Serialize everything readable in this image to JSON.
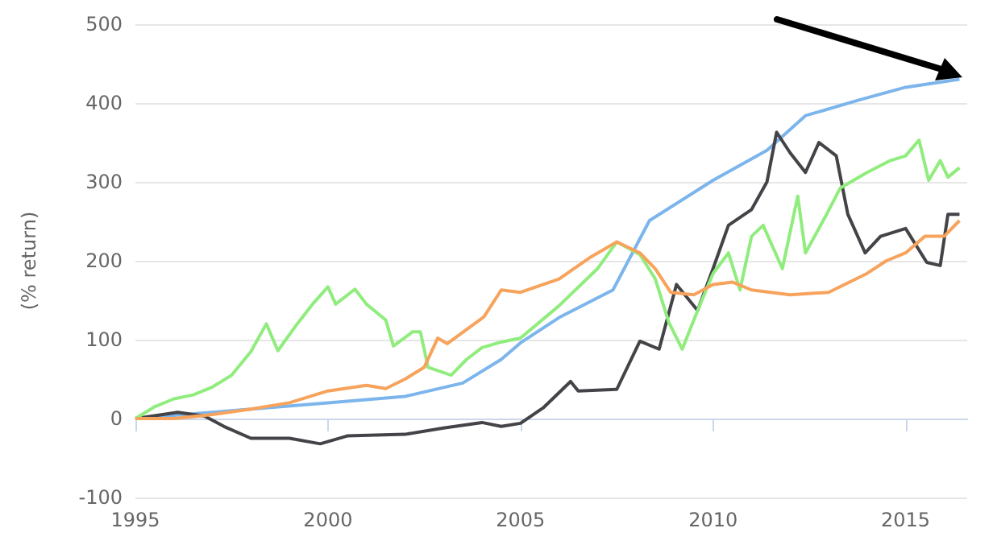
{
  "chart_data": {
    "type": "line",
    "ylabel": "(% return)",
    "xlim": [
      1995,
      2016.6
    ],
    "xticks": [
      1995,
      2000,
      2005,
      2010,
      2015
    ],
    "ylim": [
      -100,
      500
    ],
    "yticks": [
      -100,
      0,
      100,
      200,
      300,
      400,
      500
    ],
    "grid": "y",
    "marker": "none",
    "line_style": "solid",
    "series": [
      {
        "color": "#7cb5ec",
        "x": [
          1995,
          1997,
          2000,
          2002,
          2003.5,
          2004.5,
          2005,
          2006,
          2007.4,
          2008.35,
          2010,
          2011.4,
          2012.4,
          2013.8,
          2015,
          2016.4
        ],
        "values": [
          0,
          8,
          20,
          28,
          45,
          75,
          96,
          128,
          163,
          251,
          302,
          340,
          384,
          404,
          420,
          430
        ]
      },
      {
        "color": "#434348",
        "x": [
          1995,
          1996.1,
          1996.8,
          1997.3,
          1998,
          1999,
          1999.8,
          2000.5,
          2002,
          2003,
          2004,
          2004.5,
          2005,
          2005.6,
          2006.3,
          2006.5,
          2007.5,
          2008.1,
          2008.6,
          2009.05,
          2009.6,
          2010,
          2010.4,
          2011,
          2011.4,
          2011.65,
          2012,
          2012.4,
          2012.75,
          2013.2,
          2013.5,
          2013.95,
          2014.35,
          2015,
          2015.55,
          2015.9,
          2016.1,
          2016.4
        ],
        "values": [
          0,
          8,
          3,
          -10,
          -25,
          -25,
          -32,
          -22,
          -20,
          -12,
          -5,
          -10,
          -6,
          14,
          47,
          35,
          37,
          98,
          88,
          170,
          137,
          190,
          245,
          265,
          300,
          363,
          337,
          312,
          350,
          333,
          259,
          210,
          231,
          241,
          198,
          194,
          259,
          259
        ]
      },
      {
        "color": "#90ed7d",
        "x": [
          1995,
          1995.5,
          1996,
          1996.5,
          1997,
          1997.5,
          1998,
          1998.4,
          1998.7,
          1999.2,
          1999.6,
          2000,
          2000.2,
          2000.7,
          2001,
          2001.5,
          2001.7,
          2002.2,
          2002.4,
          2002.6,
          2003.2,
          2003.6,
          2004,
          2004.5,
          2005,
          2006,
          2007,
          2007.5,
          2008.1,
          2008.5,
          2008.85,
          2009.2,
          2009.6,
          2010,
          2010.4,
          2010.7,
          2011,
          2011.3,
          2011.8,
          2012.2,
          2012.4,
          2012.95,
          2013.3,
          2014,
          2014.6,
          2015,
          2015.35,
          2015.6,
          2015.9,
          2016.1,
          2016.4
        ],
        "values": [
          0,
          15,
          25,
          30,
          40,
          55,
          85,
          120,
          86,
          120,
          145,
          167,
          145,
          164,
          145,
          125,
          92,
          110,
          110,
          65,
          55,
          75,
          90,
          97,
          102,
          143,
          190,
          224,
          208,
          177,
          122,
          88,
          137,
          184,
          210,
          163,
          231,
          245,
          190,
          282,
          210,
          259,
          292,
          312,
          327,
          333,
          353,
          302,
          327,
          306,
          318
        ]
      },
      {
        "color": "#f7a35c",
        "x": [
          1995,
          1996,
          1997,
          1998,
          1999,
          2000,
          2001,
          2001.5,
          2002,
          2002.5,
          2002.85,
          2003.1,
          2004.05,
          2004.5,
          2005,
          2006,
          2006.8,
          2007.5,
          2008.1,
          2008.5,
          2008.9,
          2009.5,
          2010,
          2010.5,
          2011,
          2012,
          2013,
          2014,
          2014.5,
          2015,
          2015.5,
          2016,
          2016.4
        ],
        "values": [
          0,
          0,
          5,
          12,
          20,
          35,
          42,
          38,
          50,
          65,
          102,
          95,
          129,
          163,
          160,
          177,
          204,
          224,
          210,
          190,
          160,
          157,
          170,
          173,
          163,
          157,
          160,
          184,
          200,
          210,
          231,
          231,
          251
        ]
      }
    ]
  }
}
